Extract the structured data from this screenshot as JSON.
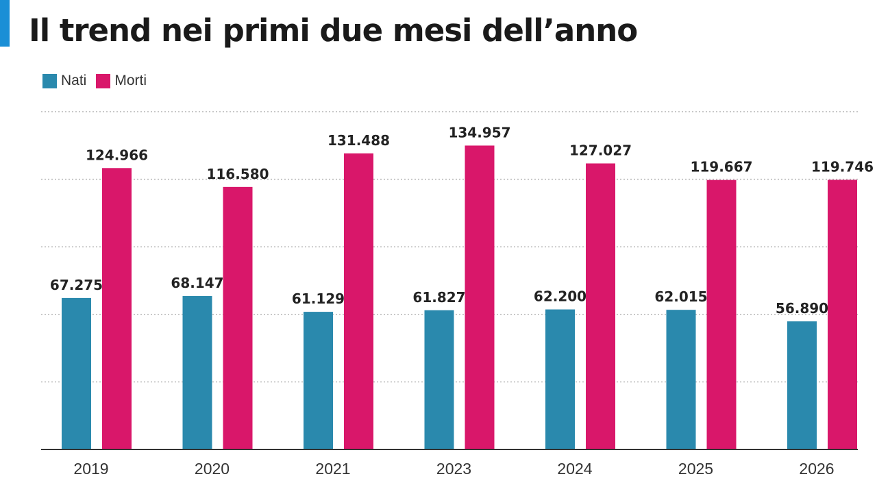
{
  "title": "Il trend nei primi due mesi dell’anno",
  "colors": {
    "accent": "#1a8fd6",
    "nati": "#2a89ad",
    "morti": "#d9176a",
    "grid": "#b5b5b5",
    "axis": "#333333"
  },
  "chart_data": {
    "type": "bar",
    "title": "Il trend nei primi due mesi dell’anno",
    "xlabel": "",
    "ylabel": "",
    "categories": [
      "2019",
      "2020",
      "2021",
      "2023",
      "2024",
      "2025",
      "2026"
    ],
    "series": [
      {
        "name": "Nati",
        "values": [
          67275,
          68147,
          61129,
          61827,
          62200,
          62015,
          56890
        ],
        "labels": [
          "67.275",
          "68.147",
          "61.129",
          "61.827",
          "62.200",
          "62.015",
          "56.890"
        ]
      },
      {
        "name": "Morti",
        "values": [
          124966,
          116580,
          131488,
          134957,
          127027,
          119667,
          119746
        ],
        "labels": [
          "124.966",
          "116.580",
          "131.488",
          "134.957",
          "127.027",
          "119.667",
          "119.746"
        ]
      }
    ],
    "ylim": [
      0,
      150000
    ],
    "grid": true,
    "legend": "top-left"
  }
}
